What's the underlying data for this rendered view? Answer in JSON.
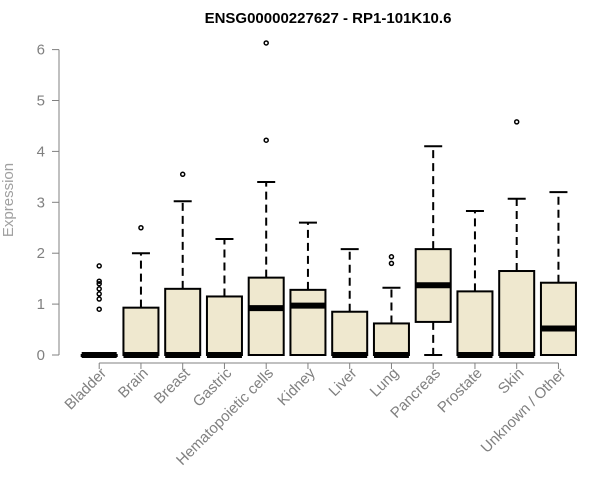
{
  "chart_data": {
    "type": "box",
    "title": "ENSG00000227627 - RP1-101K10.6",
    "xlabel": "",
    "ylabel": "Expression",
    "ylim": [
      0,
      6.2
    ],
    "yticks": [
      0,
      1,
      2,
      3,
      4,
      5,
      6
    ],
    "colors": {
      "box_fill": "#efe8cf",
      "box_stroke": "#000000",
      "axis": "#808080"
    },
    "categories": [
      "Bladder",
      "Brain",
      "Breast",
      "Gastric",
      "Hematopoietic cells",
      "Kidney",
      "Liver",
      "Lung",
      "Pancreas",
      "Prostate",
      "Skin",
      "Unknown / Other"
    ],
    "boxes": [
      {
        "q1": 0,
        "median": 0,
        "q3": 0,
        "whisker_low": 0,
        "whisker_high": 0,
        "outliers": [
          0.9,
          1.1,
          1.2,
          1.3,
          1.4,
          1.45,
          1.75
        ]
      },
      {
        "q1": 0,
        "median": 0,
        "q3": 0.93,
        "whisker_low": 0,
        "whisker_high": 2.0,
        "outliers": [
          2.5
        ]
      },
      {
        "q1": 0,
        "median": 0,
        "q3": 1.3,
        "whisker_low": 0,
        "whisker_high": 3.02,
        "outliers": [
          3.55
        ]
      },
      {
        "q1": 0,
        "median": 0,
        "q3": 1.15,
        "whisker_low": 0,
        "whisker_high": 2.28,
        "outliers": []
      },
      {
        "q1": 0,
        "median": 0.92,
        "q3": 1.52,
        "whisker_low": 0,
        "whisker_high": 3.4,
        "outliers": [
          4.22,
          6.13
        ]
      },
      {
        "q1": 0,
        "median": 0.97,
        "q3": 1.28,
        "whisker_low": 0,
        "whisker_high": 2.6,
        "outliers": []
      },
      {
        "q1": 0,
        "median": 0,
        "q3": 0.85,
        "whisker_low": 0,
        "whisker_high": 2.08,
        "outliers": []
      },
      {
        "q1": 0,
        "median": 0,
        "q3": 0.62,
        "whisker_low": 0,
        "whisker_high": 1.32,
        "outliers": [
          1.8,
          1.93
        ]
      },
      {
        "q1": 0.65,
        "median": 1.37,
        "q3": 2.08,
        "whisker_low": 0,
        "whisker_high": 4.1,
        "outliers": []
      },
      {
        "q1": 0,
        "median": 0,
        "q3": 1.25,
        "whisker_low": 0,
        "whisker_high": 2.83,
        "outliers": []
      },
      {
        "q1": 0,
        "median": 0,
        "q3": 1.65,
        "whisker_low": 0,
        "whisker_high": 3.07,
        "outliers": [
          4.58
        ]
      },
      {
        "q1": 0,
        "median": 0.52,
        "q3": 1.42,
        "whisker_low": 0,
        "whisker_high": 3.2,
        "outliers": []
      }
    ]
  }
}
